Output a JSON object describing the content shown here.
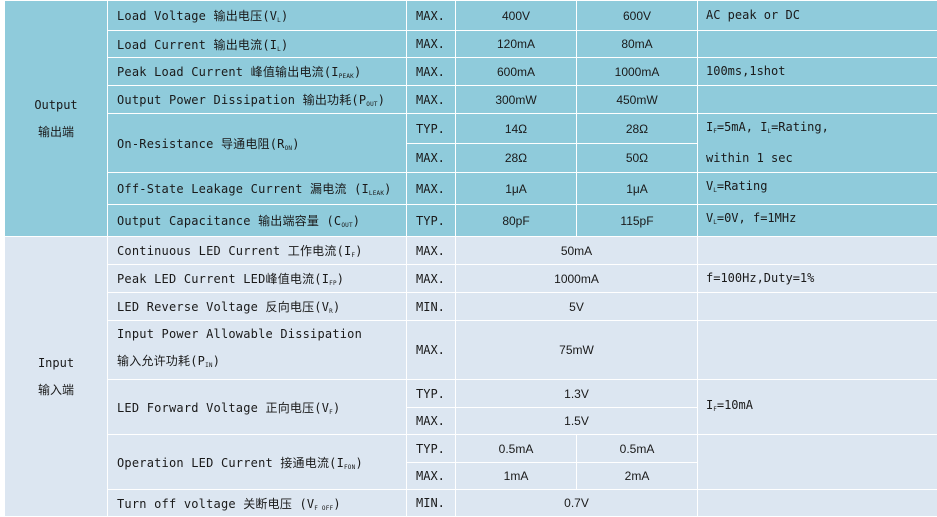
{
  "colors": {
    "output_bg": "#8fcbdb",
    "input_bg": "#dce6f1",
    "border": "#ffffff"
  },
  "output": {
    "group": [
      "Output",
      "输出端"
    ],
    "rows": [
      {
        "p": [
          "Load Voltage 输出电压(V",
          "L",
          ")"
        ],
        "cond": "MAX.",
        "v1": "400V",
        "v2": "600V",
        "note": [
          "AC peak or DC"
        ]
      },
      {
        "p": [
          "Load Current 输出电流(I",
          "L",
          ")"
        ],
        "cond": "MAX.",
        "v1": "120mA",
        "v2": "80mA",
        "note": [
          ""
        ]
      },
      {
        "p": [
          "Peak Load Current 峰值输出电流(I",
          "PEAK",
          ")"
        ],
        "cond": "MAX.",
        "v1": "600mA",
        "v2": "1000mA",
        "note": [
          "100ms,1shot"
        ]
      },
      {
        "p": [
          "Output Power Dissipation 输出功耗(P",
          "OUT",
          ")"
        ],
        "cond": "MAX.",
        "v1": "300mW",
        "v2": "450mW",
        "note": [
          ""
        ]
      },
      {
        "p": [
          "On-Resistance 导通电阻(R",
          "ON",
          ")"
        ],
        "sub": [
          {
            "cond": "TYP.",
            "v1": "14Ω",
            "v2": "28Ω"
          },
          {
            "cond": "MAX.",
            "v1": "28Ω",
            "v2": "50Ω"
          }
        ],
        "note": [
          "I",
          "F",
          "=5mA, I",
          "L",
          "=Rating,",
          "within 1 sec"
        ]
      },
      {
        "p": [
          "Off-State Leakage Current 漏电流 (I",
          "LEAK",
          ")"
        ],
        "cond": "MAX.",
        "v1": "1μA",
        "v2": "1μA",
        "note": [
          "V",
          "L",
          "=Rating"
        ]
      },
      {
        "p": [
          "Output Capacitance 输出端容量 (C",
          "OUT",
          ")"
        ],
        "cond": "TYP.",
        "v1": "80pF",
        "v2": "115pF",
        "note": [
          "V",
          "L",
          "=0V, f=1MHz"
        ]
      }
    ]
  },
  "input": {
    "group": [
      "Input",
      "输入端"
    ],
    "rows": [
      {
        "p": [
          "Continuous LED Current 工作电流(I",
          "F",
          ")"
        ],
        "cond": "MAX.",
        "v": "50mA",
        "note": [
          ""
        ]
      },
      {
        "p": [
          "Peak LED Current LED峰值电流(I",
          "FP",
          ")"
        ],
        "cond": "MAX.",
        "v": "1000mA",
        "note": [
          "f=100Hz,Duty=1%"
        ]
      },
      {
        "p": [
          "LED Reverse Voltage 反向电压(V",
          "R",
          ")"
        ],
        "cond": "MIN.",
        "v": "5V",
        "note": [
          ""
        ]
      },
      {
        "p": [
          "Input Power Allowable Dissipation",
          "输入允许功耗(P",
          "IN",
          ")"
        ],
        "cond": "MAX.",
        "v": "75mW",
        "note": [
          ""
        ]
      },
      {
        "p": [
          "LED Forward Voltage 正向电压(V",
          "F",
          ")"
        ],
        "sub": [
          {
            "cond": "TYP.",
            "v": "1.3V"
          },
          {
            "cond": "MAX.",
            "v": "1.5V"
          }
        ],
        "note": [
          "I",
          "F",
          "=10mA"
        ]
      },
      {
        "p": [
          "Operation LED Current 接通电流(I",
          "FON",
          ")"
        ],
        "sub": [
          {
            "cond": "TYP.",
            "v1": "0.5mA",
            "v2": "0.5mA"
          },
          {
            "cond": "MAX.",
            "v1": "1mA",
            "v2": "2mA"
          }
        ],
        "note": [
          ""
        ]
      },
      {
        "p": [
          "Turn off voltage 关断电压 (V",
          "F OFF",
          ")"
        ],
        "cond": "MIN.",
        "v": "0.7V",
        "note": [
          ""
        ]
      }
    ]
  }
}
